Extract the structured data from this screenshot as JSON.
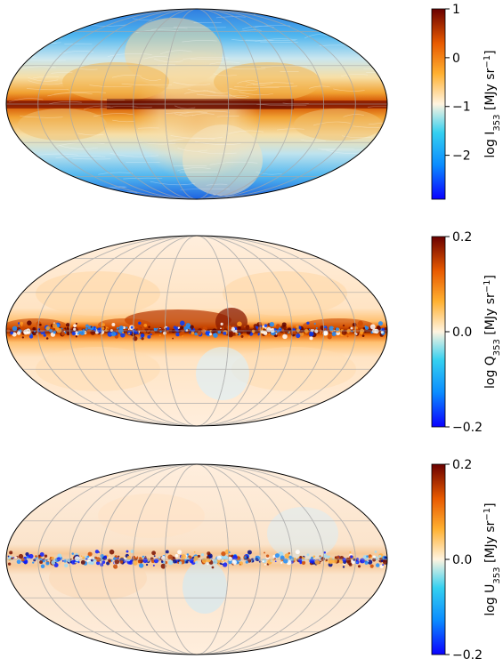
{
  "figure": {
    "panels": [
      {
        "id": "intensity",
        "colorbar": {
          "label": "log I",
          "label_sub": "353",
          "unit": "[MJy sr",
          "unit_sup": "−1",
          "unit_close": "]",
          "ticks": [
            {
              "value": 1,
              "text": "1"
            },
            {
              "value": 0,
              "text": "0"
            },
            {
              "value": -1,
              "text": "−1"
            },
            {
              "value": -2,
              "text": "−2"
            }
          ],
          "range": [
            -2.9,
            1.0
          ]
        }
      },
      {
        "id": "stokes-q",
        "colorbar": {
          "label": "log Q",
          "label_sub": "353",
          "unit": "[MJy sr",
          "unit_sup": "−1",
          "unit_close": "]",
          "ticks": [
            {
              "value": 0.2,
              "text": "0.2"
            },
            {
              "value": 0.0,
              "text": "0.0"
            },
            {
              "value": -0.2,
              "text": "−0.2"
            }
          ],
          "range": [
            -0.2,
            0.2
          ]
        }
      },
      {
        "id": "stokes-u",
        "colorbar": {
          "label": "log U",
          "label_sub": "353",
          "unit": "[MJy sr",
          "unit_sup": "−1",
          "unit_close": "]",
          "ticks": [
            {
              "value": 0.2,
              "text": "0.2"
            },
            {
              "value": 0.0,
              "text": "0.0"
            },
            {
              "value": -0.2,
              "text": "−0.2"
            }
          ],
          "range": [
            -0.2,
            0.2
          ]
        }
      }
    ]
  },
  "chart_data": [
    {
      "type": "heatmap",
      "projection": "mollweide",
      "quantity": "log I353",
      "colorscale": "diverging blue-white-orange-red",
      "vmin": -2.9,
      "vmax": 1.0,
      "grid": true,
      "overlay": "drapery (magnetic field lines)"
    },
    {
      "type": "heatmap",
      "projection": "mollweide",
      "quantity": "log Q353",
      "colorscale": "diverging blue-white-orange-red",
      "vmin": -0.2,
      "vmax": 0.2,
      "grid": true
    },
    {
      "type": "heatmap",
      "projection": "mollweide",
      "quantity": "log U353",
      "colorscale": "diverging blue-white-orange-red",
      "vmin": -0.2,
      "vmax": 0.2,
      "grid": true
    }
  ],
  "colors": {
    "cmap": [
      "#0a00ff",
      "#0a8cff",
      "#34d0f0",
      "#fff4e0",
      "#ffb030",
      "#e85a00",
      "#6a0000"
    ]
  }
}
